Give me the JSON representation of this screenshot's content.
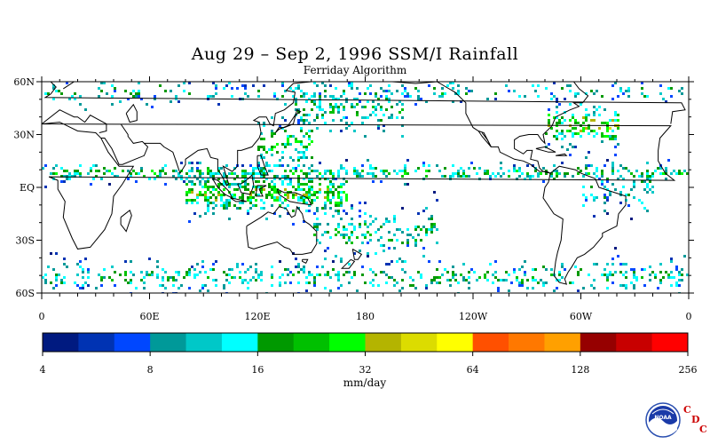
{
  "title": "Aug 29 – Sep 2, 1996 SSM/I Rainfall",
  "subtitle": "Ferriday Algorithm",
  "lat_labels": [
    "60N",
    "30N",
    "EQ",
    "30S",
    "60S"
  ],
  "lat_values": [
    60,
    30,
    0,
    -30,
    -60
  ],
  "lon_labels": [
    "0",
    "60E",
    "120E",
    "180",
    "120W",
    "60W",
    "0"
  ],
  "lon_values": [
    0,
    60,
    120,
    180,
    240,
    300,
    360
  ],
  "colorbar": {
    "colors": [
      "#001a80",
      "#0033b3",
      "#0047ff",
      "#009999",
      "#00c8c8",
      "#00ffff",
      "#009900",
      "#00c000",
      "#00ff00",
      "#b4b400",
      "#dcdc00",
      "#ffff00",
      "#ff5000",
      "#ff7800",
      "#ffa000",
      "#960000",
      "#c80000",
      "#ff0000"
    ],
    "tick_labels": [
      "4",
      "8",
      "16",
      "32",
      "64",
      "128",
      "256"
    ],
    "units": "mm/day"
  },
  "logo": {
    "name": "noaa-logo",
    "text": "NOAA",
    "cdc": [
      "C",
      "D",
      "C"
    ]
  }
}
